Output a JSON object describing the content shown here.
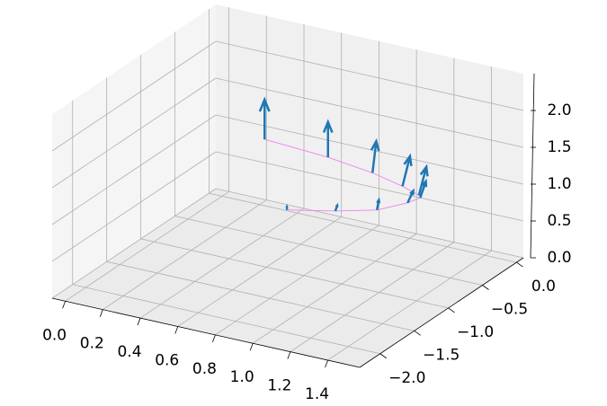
{
  "chart_data": {
    "type": "quiver3d",
    "xlim": [
      -0.07,
      1.57
    ],
    "ylim": [
      -2.3,
      0.1
    ],
    "zlim": [
      0,
      2.5
    ],
    "xticks": [
      {
        "value": 0,
        "label": "0.0"
      },
      0.2,
      0.4,
      0.6,
      0.8,
      {
        "value": 1,
        "label": "1.0"
      },
      1.2,
      1.4
    ],
    "yticks": [
      {
        "value": 0,
        "label": "0.0"
      },
      {
        "value": -0.5,
        "label": "−0.5"
      },
      {
        "value": -1,
        "label": "−1.0"
      },
      {
        "value": -1.5,
        "label": "−1.5"
      },
      {
        "value": -2,
        "label": "−2.0"
      }
    ],
    "zticks": [
      {
        "value": 0,
        "label": "0.0"
      },
      0.5,
      {
        "value": 1,
        "label": "1.0"
      },
      1.5,
      {
        "value": 2,
        "label": "2.0"
      }
    ],
    "grid": true,
    "series": [
      {
        "color": "#1f77b4",
        "line_color": "#ee82ee",
        "x": [
          0.27,
          0.63,
          0.9,
          1.1,
          1.22
        ],
        "y": [
          -0.12,
          -0.18,
          -0.27,
          -0.38,
          -0.47
        ],
        "z": [
          1,
          1,
          1,
          1,
          1
        ],
        "u": [
          0,
          0,
          0.02,
          0.04,
          0.04
        ],
        "v": [
          0,
          0,
          0,
          0,
          0
        ],
        "w": [
          0.54,
          0.48,
          0.44,
          0.43,
          0.41
        ]
      },
      {
        "color": "#1f77b4",
        "line_color": "#ee82ee",
        "x": [
          0.56,
          0.76,
          0.92,
          1.0,
          1.02
        ],
        "y": [
          -0.59,
          -0.43,
          -0.26,
          -0.03,
          0.1
        ],
        "z": [
          0.5,
          0.5,
          0.5,
          0.5,
          0.5
        ],
        "u": [
          0,
          0.01,
          0.01,
          0.03,
          0.03
        ],
        "v": [
          0,
          0,
          0,
          0,
          0
        ],
        "w": [
          0.04,
          0.08,
          0.14,
          0.18,
          0.24
        ]
      }
    ]
  }
}
